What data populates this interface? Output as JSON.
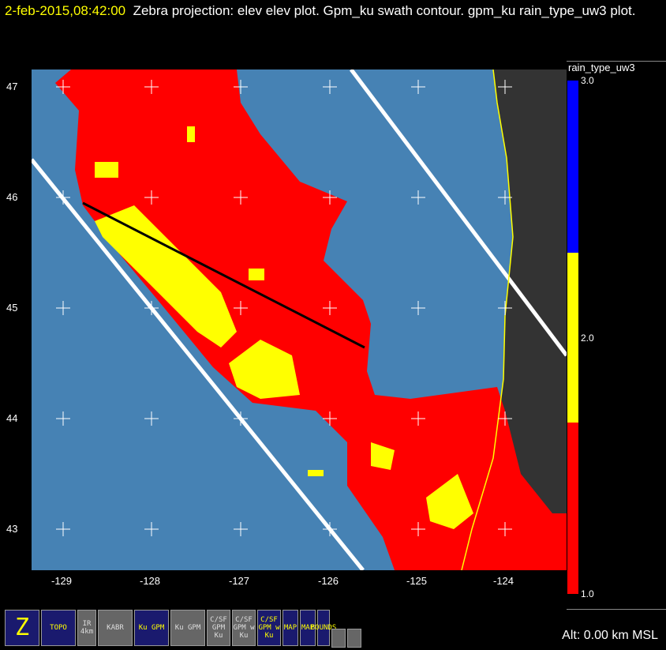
{
  "header": {
    "timestamp": "2-feb-2015,08:42:00",
    "description": "Zebra projection: elev elev  plot.  Gpm_ku swath contour.  gpm_ku rain_type_uw3  plot."
  },
  "colorbar": {
    "title": "rain_type_uw3",
    "labels": [
      "3.0",
      "2.0",
      "1.0"
    ],
    "colors": {
      "3": "#0000ff",
      "2": "#ffff00",
      "1": "#ff0000"
    }
  },
  "axes": {
    "lon_ticks": [
      "-129",
      "-128",
      "-127",
      "-126",
      "-125",
      "-124"
    ],
    "lat_ticks": [
      "47",
      "46",
      "45",
      "44",
      "43"
    ]
  },
  "map_colors": {
    "ocean": "#4682b4",
    "land": "#333333",
    "swath": "#ffffff",
    "coast": "#ffff00"
  },
  "toolbar": [
    {
      "icon": "zebra-icon",
      "label": "Z",
      "active": true
    },
    {
      "icon": "topo-icon",
      "label": "TOPO",
      "active": true
    },
    {
      "icon": "ir-satellite-icon",
      "label": "IR 4km",
      "active": false
    },
    {
      "icon": "radar-kabr-icon",
      "label": "KABR",
      "active": false
    },
    {
      "icon": "gpm-ku-icon",
      "label": "Ku GPM",
      "active": true
    },
    {
      "icon": "gpm-ku-icon-2",
      "label": "Ku GPM",
      "active": false
    },
    {
      "icon": "csf-gpm-ku-icon",
      "label": "C/SF GPM Ku",
      "active": false
    },
    {
      "icon": "csf-gpm-wku-icon",
      "label": "C/SF GPM w Ku",
      "active": false
    },
    {
      "icon": "csf-gpm-wku-icon-active",
      "label": "C/SF GPM w Ku",
      "active": true
    },
    {
      "icon": "usa-map-icon",
      "label": "MAP",
      "active": true
    },
    {
      "icon": "usa-map-icon-2",
      "label": "MAP",
      "active": true
    },
    {
      "icon": "bounds-icon",
      "label": "BOUNDS",
      "active": true
    },
    {
      "icon": "circle-icon",
      "label": "",
      "active": false
    },
    {
      "icon": "grid-icon",
      "label": "",
      "active": false
    }
  ],
  "status": {
    "altitude": "Alt: 0.00 km MSL"
  }
}
